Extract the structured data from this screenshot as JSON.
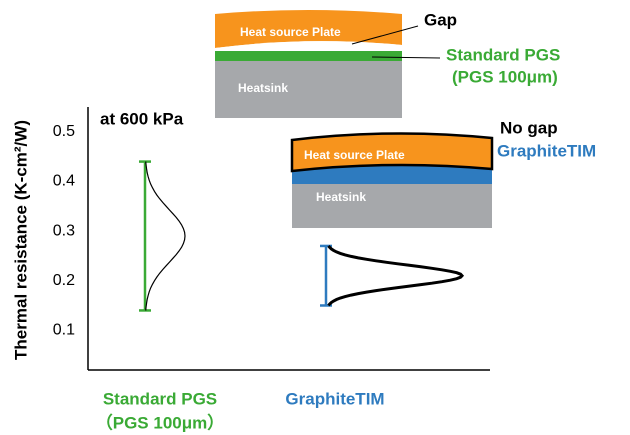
{
  "chart_data": {
    "type": "range",
    "ylabel": "Thermal resistance (K-cm²/W)",
    "annotation": "at 600 kPa",
    "ylim": [
      0.02,
      0.55
    ],
    "yticks": [
      0.1,
      0.2,
      0.3,
      0.4,
      0.5
    ],
    "series": [
      {
        "name": "Standard PGS",
        "note": "（PGS 100μm）",
        "color": "#3aaa35",
        "min": 0.14,
        "max": 0.44,
        "peak": 0.29,
        "curve_width": "thin"
      },
      {
        "name": "GraphiteTIM",
        "color": "#2e7bbf",
        "min": 0.15,
        "max": 0.27,
        "peak": 0.21,
        "curve_width": "thick"
      }
    ],
    "insets": [
      {
        "plate": "Heat source Plate",
        "sink": "Heatsink",
        "gap": "Gap",
        "layer": "Standard PGS",
        "layer_note": "(PGS 100μm)"
      },
      {
        "plate": "Heat source Plate",
        "sink": "Heatsink",
        "gap": "No gap",
        "layer": "GraphiteTIM"
      }
    ]
  }
}
